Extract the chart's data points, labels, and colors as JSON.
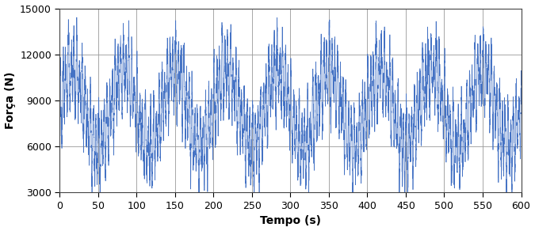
{
  "title": "",
  "xlabel": "Tempo (s)",
  "ylabel": "Força (N)",
  "xlim": [
    0,
    600
  ],
  "ylim": [
    3000,
    15000
  ],
  "xticks": [
    0,
    50,
    100,
    150,
    200,
    250,
    300,
    350,
    400,
    450,
    500,
    550,
    600
  ],
  "yticks": [
    3000,
    6000,
    9000,
    12000,
    15000
  ],
  "line_color": "#4472C4",
  "line_width": 0.5,
  "mean_force": 8500,
  "amp_env": 2500,
  "freq_env": 0.015,
  "amp_carrier": 2000,
  "freq_carrier": 0.28,
  "noise_std": 500,
  "dt": 0.1,
  "duration": 600,
  "seed": 7,
  "grid_color": "#999999",
  "grid_linewidth": 0.6,
  "bg_color": "#ffffff",
  "xlabel_fontsize": 10,
  "ylabel_fontsize": 10,
  "tick_fontsize": 9,
  "xlabel_fontweight": "bold",
  "ylabel_fontweight": "bold",
  "spine_linewidth": 0.8
}
